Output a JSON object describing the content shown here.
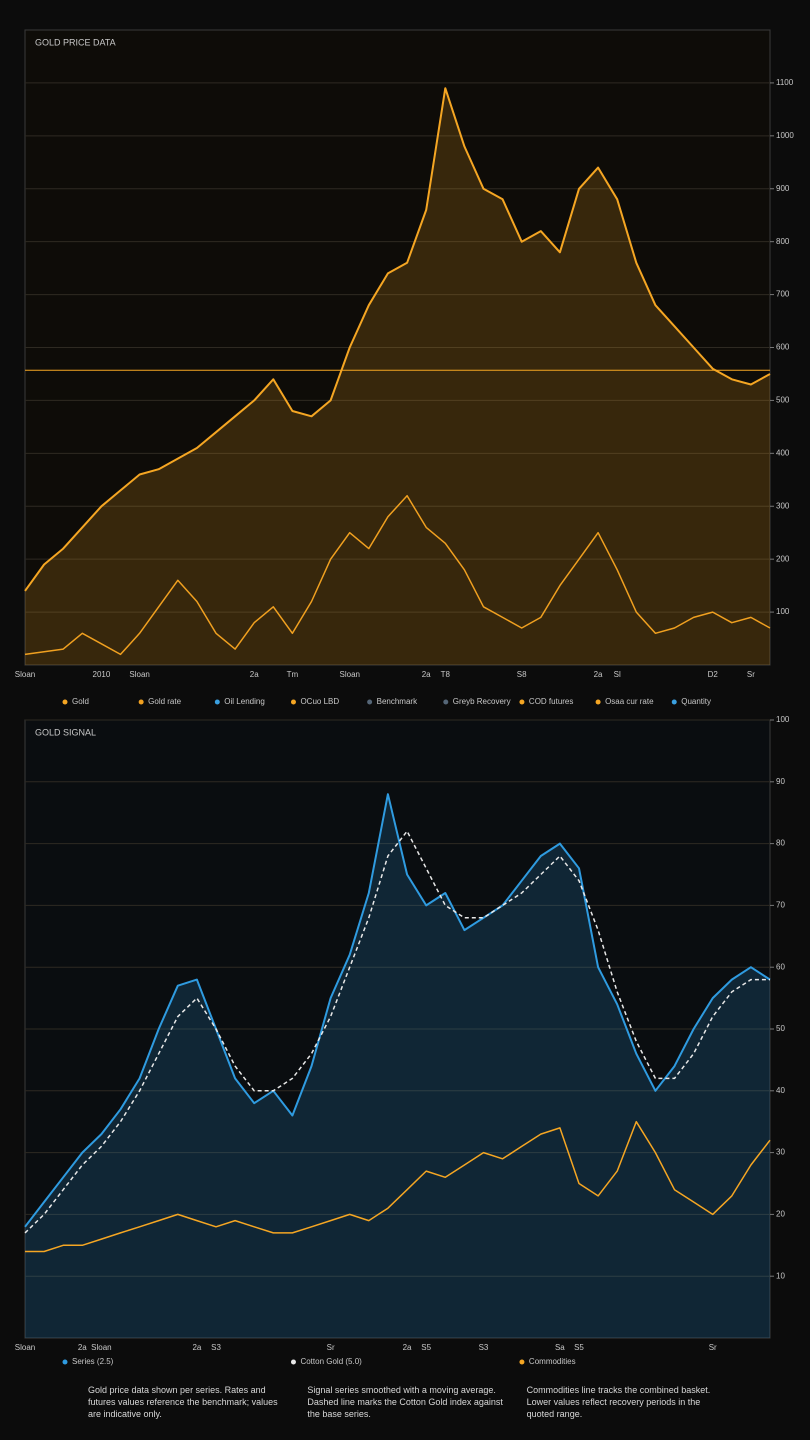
{
  "chart_data": [
    {
      "type": "line",
      "title": "GOLD PRICE DATA",
      "categories": [
        "Sloan",
        null,
        null,
        null,
        "2010",
        null,
        "Sloan",
        null,
        null,
        null,
        null,
        null,
        "2a",
        null,
        "Tm",
        null,
        null,
        "Sloan",
        null,
        null,
        null,
        "2a",
        "T8",
        null,
        null,
        null,
        "S8",
        null,
        null,
        null,
        "2a",
        "Sl",
        null,
        null,
        null,
        null,
        "D2",
        null,
        "Sr",
        null
      ],
      "series": [
        {
          "name": "Gold",
          "color": "#f5a623",
          "style": "area",
          "values": [
            140,
            190,
            220,
            260,
            300,
            330,
            360,
            370,
            390,
            410,
            440,
            470,
            500,
            540,
            480,
            470,
            500,
            600,
            680,
            740,
            760,
            860,
            1090,
            980,
            900,
            880,
            800,
            820,
            780,
            900,
            940,
            880,
            760,
            680,
            640,
            600,
            560,
            540,
            530,
            550
          ]
        },
        {
          "name": "Gold rate",
          "color": "#f0a020",
          "style": "line",
          "values": [
            20,
            25,
            30,
            60,
            40,
            20,
            60,
            110,
            160,
            120,
            60,
            30,
            80,
            110,
            60,
            120,
            200,
            250,
            220,
            280,
            320,
            260,
            230,
            180,
            110,
            90,
            70,
            90,
            150,
            200,
            250,
            180,
            100,
            60,
            70,
            90,
            100,
            80,
            90,
            70
          ]
        }
      ],
      "legend_extra": [
        {
          "name": "Oil Lending",
          "color": "#3aa0e0"
        },
        {
          "name": "OCuo LBD",
          "color": "#f5a623"
        },
        {
          "name": "Benchmark",
          "color": "#556677"
        },
        {
          "name": "Greyb Recovery",
          "color": "#556677"
        },
        {
          "name": "COD futures",
          "color": "#f5a623"
        },
        {
          "name": "Osaa cur rate",
          "color": "#f5a623"
        },
        {
          "name": "Quantity",
          "color": "#3aa0e0"
        }
      ],
      "reference_line": 557,
      "ylim": [
        0,
        1200
      ],
      "yticks": [
        100,
        200,
        300,
        400,
        500,
        600,
        700,
        800,
        900,
        1000,
        1100
      ],
      "grid": true
    },
    {
      "type": "line",
      "title": "GOLD SIGNAL",
      "categories": [
        "Sloan",
        null,
        null,
        "2a",
        "Sloan",
        null,
        null,
        null,
        null,
        "2a",
        "S3",
        null,
        null,
        null,
        null,
        null,
        "Sr",
        null,
        null,
        null,
        "2a",
        "S5",
        null,
        null,
        "S3",
        null,
        null,
        null,
        "Sa",
        "S5",
        null,
        null,
        null,
        null,
        null,
        null,
        "Sr",
        null,
        null,
        null
      ],
      "series": [
        {
          "name": "Series (2.5)",
          "color": "#2f9be0",
          "style": "area",
          "values": [
            18,
            22,
            26,
            30,
            33,
            37,
            42,
            50,
            57,
            58,
            50,
            42,
            38,
            40,
            36,
            44,
            55,
            62,
            72,
            88,
            75,
            70,
            72,
            66,
            68,
            70,
            74,
            78,
            80,
            76,
            60,
            54,
            46,
            40,
            44,
            50,
            55,
            58,
            60,
            58
          ]
        },
        {
          "name": "Cotton Gold (5.0)",
          "color": "#e8e8e8",
          "style": "dashed",
          "values": [
            17,
            20,
            24,
            28,
            31,
            35,
            40,
            46,
            52,
            55,
            50,
            44,
            40,
            40,
            42,
            46,
            52,
            60,
            68,
            78,
            82,
            76,
            70,
            68,
            68,
            70,
            72,
            75,
            78,
            74,
            66,
            56,
            48,
            42,
            42,
            46,
            52,
            56,
            58,
            58
          ]
        },
        {
          "name": "Commodities",
          "color": "#f5a623",
          "style": "line",
          "values": [
            14,
            14,
            15,
            15,
            16,
            17,
            18,
            19,
            20,
            19,
            18,
            19,
            18,
            17,
            17,
            18,
            19,
            20,
            19,
            21,
            24,
            27,
            26,
            28,
            30,
            29,
            31,
            33,
            34,
            25,
            23,
            27,
            35,
            30,
            24,
            22,
            20,
            23,
            28,
            32
          ]
        }
      ],
      "ylim": [
        0,
        100
      ],
      "yticks": [
        10,
        20,
        30,
        40,
        50,
        60,
        70,
        80,
        90,
        100
      ],
      "grid": true
    }
  ],
  "notes": [
    "Gold price data shown per series. Rates and futures values reference the benchmark; values are indicative only.",
    "Signal series smoothed with a moving average. Dashed line marks the Cotton Gold index against the base series.",
    "Commodities line tracks the combined basket. Lower values reflect recovery periods in the quoted range."
  ]
}
